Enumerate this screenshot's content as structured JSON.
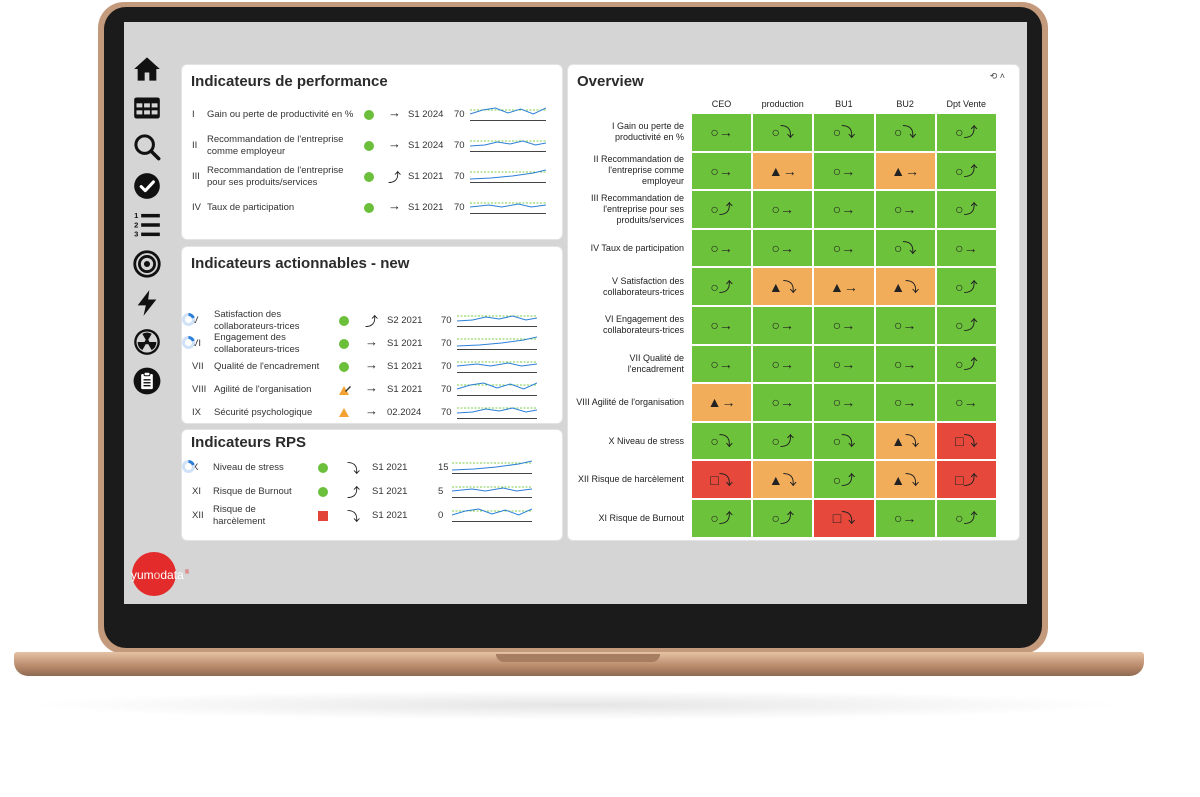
{
  "sidebar": {
    "items": [
      {
        "icon": "home-icon"
      },
      {
        "icon": "table-icon"
      },
      {
        "icon": "search-icon"
      },
      {
        "icon": "check-circle-icon"
      },
      {
        "icon": "numbered-list-icon"
      },
      {
        "icon": "target-icon"
      },
      {
        "icon": "bolt-icon"
      },
      {
        "icon": "radiation-icon"
      },
      {
        "icon": "clipboard-icon"
      }
    ]
  },
  "performance": {
    "title": "Indicateurs de performance",
    "rows": [
      {
        "num": "I",
        "label": "Gain ou perte de productivité en %",
        "status": "green",
        "trend": "→",
        "period": "S1 2024",
        "value": "70"
      },
      {
        "num": "II",
        "label": "Recommandation de l'entreprise comme employeur",
        "status": "green",
        "trend": "→",
        "period": "S1 2024",
        "value": "70"
      },
      {
        "num": "III",
        "label": "Recommandation de l'entreprise pour ses produits/services",
        "status": "green",
        "trend": "⤴",
        "period": "S1 2021",
        "value": "70"
      },
      {
        "num": "IV",
        "label": "Taux de participation",
        "status": "green",
        "trend": "→",
        "period": "S1 2021",
        "value": "70"
      }
    ]
  },
  "actionable": {
    "title": "Indicateurs actionnables - new",
    "rows": [
      {
        "num": "V",
        "label": "Satisfaction des collaborateurs-trices",
        "status": "green",
        "trend": "⤴",
        "period": "S2 2021",
        "value": "70",
        "donut": true
      },
      {
        "num": "VI",
        "label": "Engagement des collaborateurs-trices",
        "status": "green",
        "trend": "→",
        "period": "S1 2021",
        "value": "70",
        "donut": true
      },
      {
        "num": "VII",
        "label": "Qualité de l'encadrement",
        "status": "green",
        "trend": "→",
        "period": "S1 2021",
        "value": "70"
      },
      {
        "num": "VIII",
        "label": "Agilité de l'organisation",
        "status": "orange",
        "trend": "→",
        "period": "S1 2021",
        "value": "70"
      },
      {
        "num": "IX",
        "label": "Sécurité psychologique",
        "status": "orange-triangle",
        "trend": "→",
        "period": "02.2024",
        "value": "70"
      }
    ]
  },
  "rps": {
    "title": "Indicateurs RPS",
    "rows": [
      {
        "num": "X",
        "label": "Niveau de stress",
        "status": "green",
        "trend": "⤵",
        "period": "S1 2021",
        "value": "15",
        "donut": true
      },
      {
        "num": "XI",
        "label": "Risque de Burnout",
        "status": "green",
        "trend": "⤴",
        "period": "S1 2021",
        "value": "5"
      },
      {
        "num": "XII",
        "label": "Risque de harcèlement",
        "status": "red-square",
        "trend": "⤵",
        "period": "S1 2021",
        "value": "0"
      }
    ]
  },
  "overview": {
    "title": "Overview",
    "controls_label": "⟲ ˄",
    "columns": [
      "CEO",
      "production",
      "BU1",
      "BU2",
      "Dpt Vente"
    ],
    "rows": [
      {
        "label": "I Gain ou perte de productivité en %",
        "cells": [
          [
            "g",
            "○→"
          ],
          [
            "g",
            "○⤵"
          ],
          [
            "g",
            "○⤵"
          ],
          [
            "g",
            "○⤵"
          ],
          [
            "g",
            "○⤴"
          ]
        ]
      },
      {
        "label": "II Recommandation de l'entreprise comme employeur",
        "cells": [
          [
            "g",
            "○→"
          ],
          [
            "o",
            "▲→"
          ],
          [
            "g",
            "○→"
          ],
          [
            "o",
            "▲→"
          ],
          [
            "g",
            "○⤴"
          ]
        ]
      },
      {
        "label": "III Recommandation de l'entreprise pour ses produits/services",
        "cells": [
          [
            "g",
            "○⤴"
          ],
          [
            "g",
            "○→"
          ],
          [
            "g",
            "○→"
          ],
          [
            "g",
            "○→"
          ],
          [
            "g",
            "○⤴"
          ]
        ]
      },
      {
        "label": "IV Taux de participation",
        "cells": [
          [
            "g",
            "○→"
          ],
          [
            "g",
            "○→"
          ],
          [
            "g",
            "○→"
          ],
          [
            "g",
            "○⤵"
          ],
          [
            "g",
            "○→"
          ]
        ]
      },
      {
        "label": "V Satisfaction des collaborateurs-trices",
        "cells": [
          [
            "g",
            "○⤴"
          ],
          [
            "o",
            "▲⤵"
          ],
          [
            "o",
            "▲→"
          ],
          [
            "o",
            "▲⤵"
          ],
          [
            "g",
            "○⤴"
          ]
        ]
      },
      {
        "label": "VI Engagement des collaborateurs-trices",
        "cells": [
          [
            "g",
            "○→"
          ],
          [
            "g",
            "○→"
          ],
          [
            "g",
            "○→"
          ],
          [
            "g",
            "○→"
          ],
          [
            "g",
            "○⤴"
          ]
        ]
      },
      {
        "label": "VII Qualité de l'encadrement",
        "cells": [
          [
            "g",
            "○→"
          ],
          [
            "g",
            "○→"
          ],
          [
            "g",
            "○→"
          ],
          [
            "g",
            "○→"
          ],
          [
            "g",
            "○⤴"
          ]
        ]
      },
      {
        "label": "VIII Agilité de l'organisation",
        "cells": [
          [
            "o",
            "▲→"
          ],
          [
            "g",
            "○→"
          ],
          [
            "g",
            "○→"
          ],
          [
            "g",
            "○→"
          ],
          [
            "g",
            "○→"
          ]
        ]
      },
      {
        "label": "X Niveau de stress",
        "cells": [
          [
            "g",
            "○⤵"
          ],
          [
            "g",
            "○⤴"
          ],
          [
            "g",
            "○⤵"
          ],
          [
            "o",
            "▲⤵"
          ],
          [
            "r",
            "□⤵"
          ]
        ]
      },
      {
        "label": "XII Risque de harcèlement",
        "cells": [
          [
            "r",
            "□⤵"
          ],
          [
            "o",
            "▲⤵"
          ],
          [
            "g",
            "○⤴"
          ],
          [
            "o",
            "▲⤵"
          ],
          [
            "r",
            "□⤴"
          ]
        ]
      },
      {
        "label": "XI Risque de Burnout",
        "cells": [
          [
            "g",
            "○⤴"
          ],
          [
            "g",
            "○⤴"
          ],
          [
            "r",
            "□⤵"
          ],
          [
            "g",
            "○→"
          ],
          [
            "g",
            "○⤴"
          ]
        ]
      }
    ]
  },
  "logo": {
    "text_a": "yum",
    "text_b": "o",
    "text_c": "data",
    "mark": "®"
  },
  "colors": {
    "green": "#6cc23b",
    "orange": "#f2ad5a",
    "red": "#e6493c",
    "spark": "#2b7fd8",
    "target": "#7ecf4a"
  }
}
